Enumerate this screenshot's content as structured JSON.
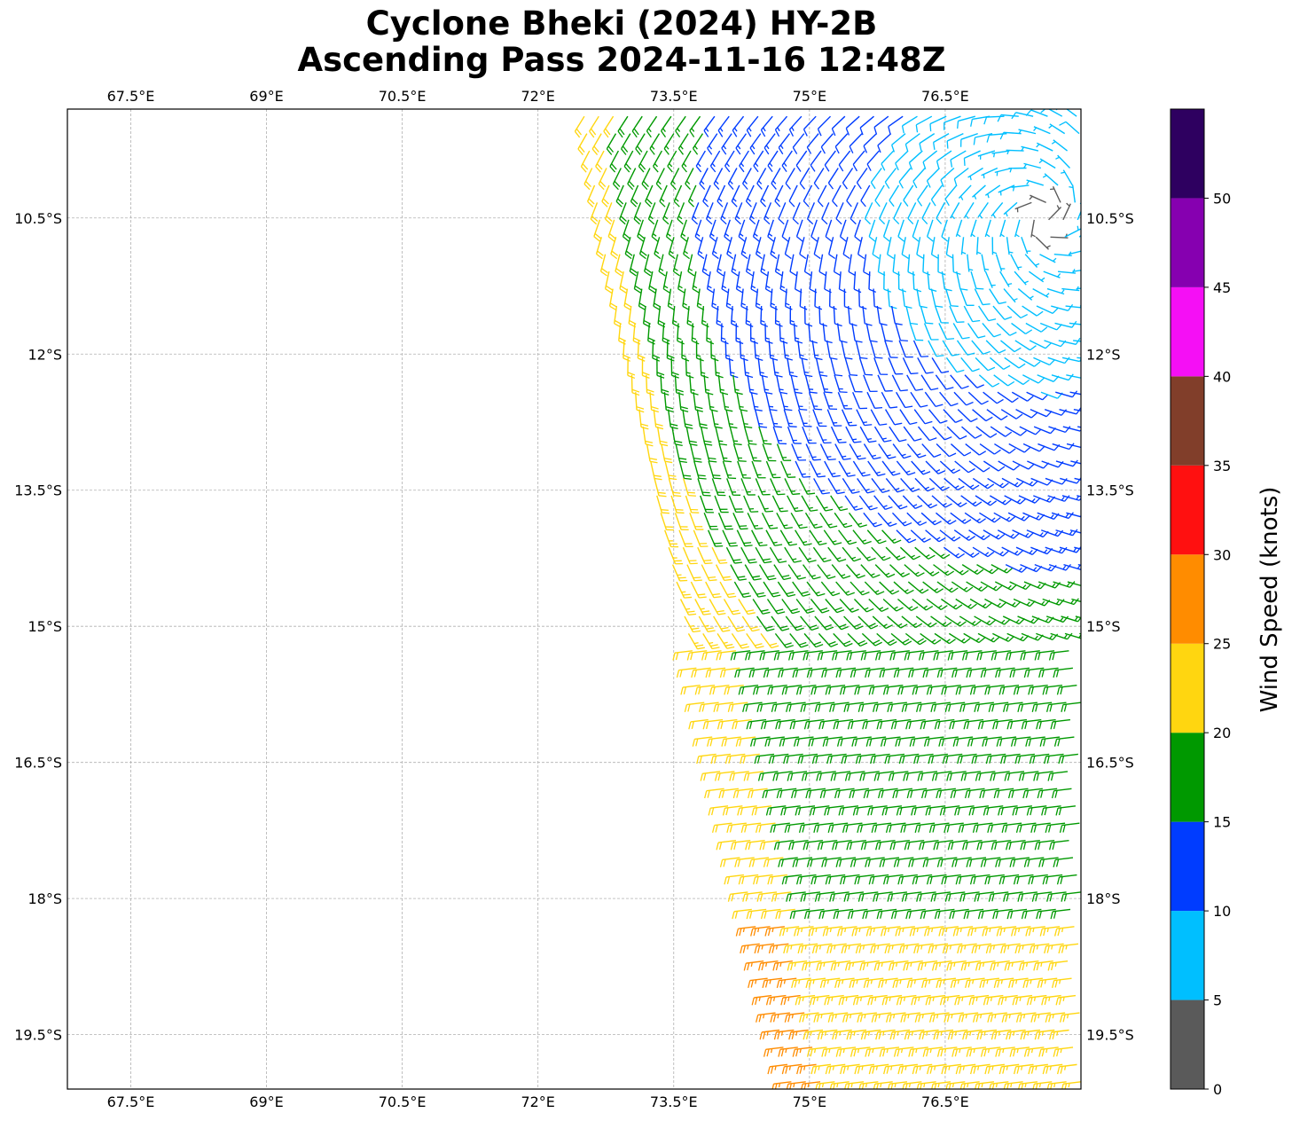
{
  "title": {
    "line1": "Cyclone Bheki (2024) HY-2B",
    "line2": "Ascending Pass 2024-11-16 12:48Z"
  },
  "map": {
    "lon_range": [
      66.8,
      78.0
    ],
    "lat_range": [
      -20.1,
      -9.3
    ],
    "lon_ticks": [
      {
        "value": 67.5,
        "label": "67.5°E"
      },
      {
        "value": 69.0,
        "label": "69°E"
      },
      {
        "value": 70.5,
        "label": "70.5°E"
      },
      {
        "value": 72.0,
        "label": "72°E"
      },
      {
        "value": 73.5,
        "label": "73.5°E"
      },
      {
        "value": 75.0,
        "label": "75°E"
      },
      {
        "value": 76.5,
        "label": "76.5°E"
      }
    ],
    "lat_ticks": [
      {
        "value": -10.5,
        "label": "10.5°S"
      },
      {
        "value": -12.0,
        "label": "12°S"
      },
      {
        "value": -13.5,
        "label": "13.5°S"
      },
      {
        "value": -15.0,
        "label": "15°S"
      },
      {
        "value": -16.5,
        "label": "16.5°S"
      },
      {
        "value": -18.0,
        "label": "18°S"
      },
      {
        "value": -19.5,
        "label": "19.5°S"
      }
    ],
    "gridlines": "dashed",
    "circulation_center": {
      "lon": 77.6,
      "lat": -10.5
    },
    "wind_field_description": "HY-2B scatterometer wind barbs over the eastern part of the domain; light winds (5-10 kt) near the circulation center in the northeast, 20-30 kt winds on the western edge of the swath"
  },
  "colorbar": {
    "label": "Wind Speed (knots)",
    "min": 0,
    "max": 55,
    "ticks": [
      0,
      5,
      10,
      15,
      20,
      25,
      30,
      35,
      40,
      45,
      50
    ],
    "bins": [
      {
        "range": [
          0,
          5
        ],
        "color": "#5a5a5a"
      },
      {
        "range": [
          5,
          10
        ],
        "color": "#00bfff"
      },
      {
        "range": [
          10,
          15
        ],
        "color": "#003cff"
      },
      {
        "range": [
          15,
          20
        ],
        "color": "#009900"
      },
      {
        "range": [
          20,
          25
        ],
        "color": "#ffd610"
      },
      {
        "range": [
          25,
          30
        ],
        "color": "#ff8c00"
      },
      {
        "range": [
          30,
          35
        ],
        "color": "#ff1010"
      },
      {
        "range": [
          35,
          40
        ],
        "color": "#813e2a"
      },
      {
        "range": [
          40,
          45
        ],
        "color": "#f50ff5"
      },
      {
        "range": [
          45,
          50
        ],
        "color": "#8600b0"
      },
      {
        "range": [
          50,
          55
        ],
        "color": "#2e0060"
      }
    ]
  }
}
